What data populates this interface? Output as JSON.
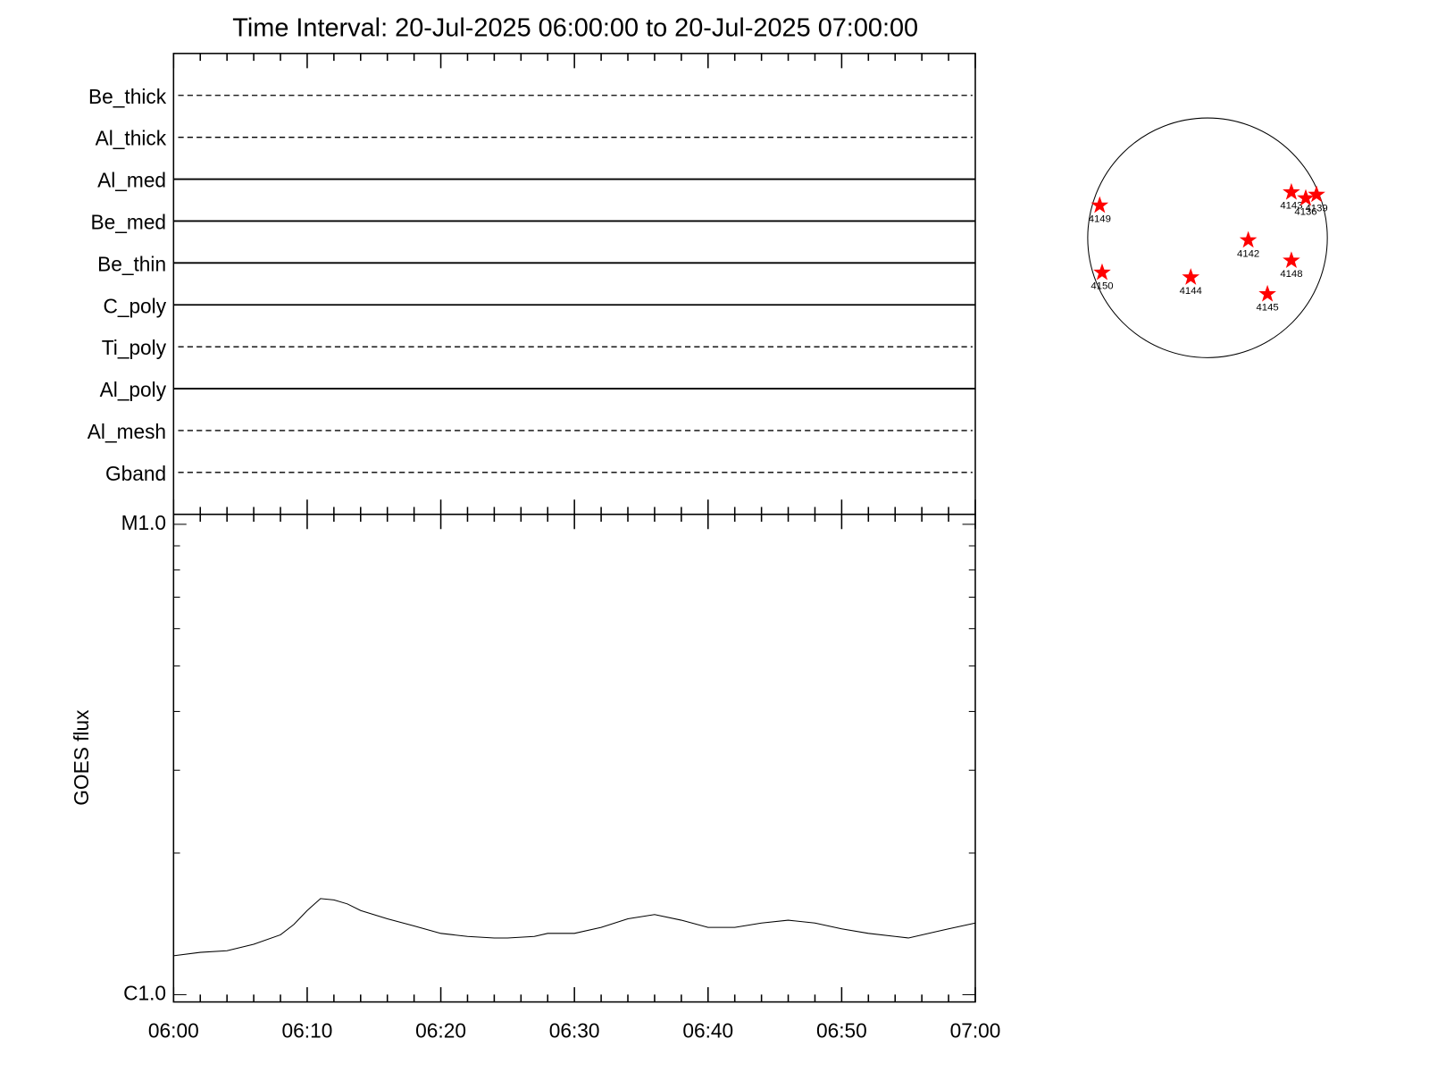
{
  "chart_data": [
    {
      "type": "timeline",
      "title": "Time Interval: 20-Jul-2025 06:00:00 to 20-Jul-2025 07:00:00",
      "categories": [
        "Be_thick",
        "Al_thick",
        "Al_med",
        "Be_med",
        "Be_thin",
        "C_poly",
        "Ti_poly",
        "Al_poly",
        "Al_mesh",
        "Gband"
      ],
      "line_styles": [
        "dashed",
        "dashed",
        "solid",
        "solid",
        "solid",
        "solid",
        "dashed",
        "solid",
        "dashed",
        "dashed"
      ],
      "color": "#000000"
    },
    {
      "type": "line",
      "y_label": "GOES flux",
      "log_y": true,
      "color": "#000000",
      "xlim": [
        "06:00",
        "07:00"
      ],
      "xticks": [
        "06:00",
        "06:10",
        "06:20",
        "06:30",
        "06:40",
        "06:50",
        "07:00"
      ],
      "minor_xticks": [
        "06:02",
        "06:04",
        "06:06",
        "06:08",
        "06:12",
        "06:14",
        "06:16",
        "06:18",
        "06:22",
        "06:24",
        "06:26",
        "06:28",
        "06:32",
        "06:34",
        "06:36",
        "06:38",
        "06:42",
        "06:44",
        "06:46",
        "06:48",
        "06:52",
        "06:54",
        "06:56",
        "06:58"
      ],
      "ylim": [
        9.65e-07,
        1.05e-05
      ],
      "yticks": [
        {
          "value": 1e-06,
          "label": "C1.0"
        },
        {
          "value": 1e-05,
          "label": "M1.0"
        }
      ],
      "minor_yticks": [
        2e-06,
        3e-06,
        4e-06,
        5e-06,
        6e-06,
        7e-06,
        8e-06,
        9e-06
      ],
      "x": [
        "06:00",
        "06:02",
        "06:04",
        "06:06",
        "06:08",
        "06:09",
        "06:10",
        "06:11",
        "06:12",
        "06:13",
        "06:14",
        "06:16",
        "06:18",
        "06:20",
        "06:22",
        "06:24",
        "06:25",
        "06:27",
        "06:28",
        "06:30",
        "06:32",
        "06:34",
        "06:36",
        "06:38",
        "06:40",
        "06:42",
        "06:44",
        "06:46",
        "06:48",
        "06:50",
        "06:52",
        "06:54",
        "06:55",
        "06:57",
        "06:58",
        "07:00"
      ],
      "values": [
        1.21e-06,
        1.23e-06,
        1.24e-06,
        1.28e-06,
        1.34e-06,
        1.41e-06,
        1.51e-06,
        1.6e-06,
        1.59e-06,
        1.56e-06,
        1.51e-06,
        1.45e-06,
        1.4e-06,
        1.35e-06,
        1.33e-06,
        1.32e-06,
        1.32e-06,
        1.33e-06,
        1.35e-06,
        1.35e-06,
        1.39e-06,
        1.45e-06,
        1.48e-06,
        1.44e-06,
        1.39e-06,
        1.39e-06,
        1.42e-06,
        1.44e-06,
        1.42e-06,
        1.38e-06,
        1.35e-06,
        1.33e-06,
        1.32e-06,
        1.36e-06,
        1.38e-06,
        1.42e-06
      ]
    },
    {
      "type": "disk",
      "color": "#ff0000",
      "xlim": [
        -1,
        1
      ],
      "ylim": [
        -1,
        1
      ],
      "labels": [
        "4149",
        "4143",
        "4136",
        "4139",
        "4142",
        "4148",
        "4150",
        "4144",
        "4145"
      ],
      "x": [
        -0.9,
        0.7,
        0.82,
        0.91,
        0.34,
        0.7,
        -0.88,
        -0.14,
        0.5
      ],
      "y": [
        0.27,
        0.38,
        0.33,
        0.36,
        -0.02,
        -0.19,
        -0.29,
        -0.33,
        -0.47
      ]
    }
  ]
}
